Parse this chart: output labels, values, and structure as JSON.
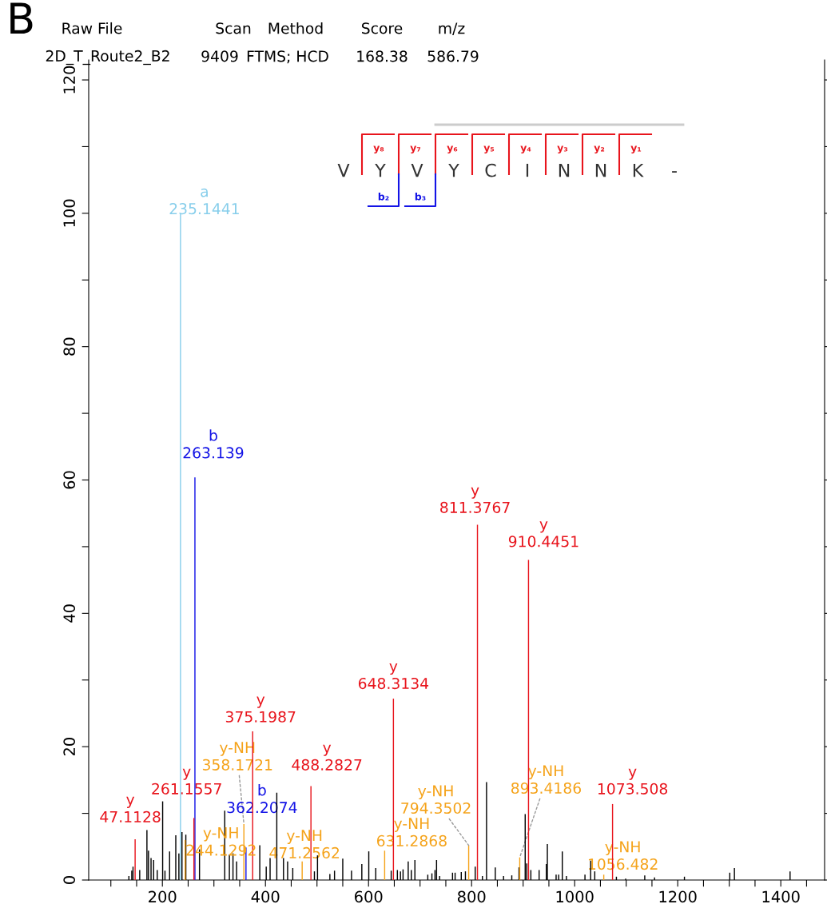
{
  "chart_data": {
    "type": "bar",
    "title": "B",
    "xlim": [
      57,
      1485
    ],
    "xticks": [
      {
        "value": 100,
        "label": null
      },
      {
        "value": 150,
        "label": null
      },
      200,
      {
        "value": 250,
        "label": null
      },
      {
        "value": 300,
        "label": null
      },
      {
        "value": 350,
        "label": null
      },
      400,
      {
        "value": 450,
        "label": null
      },
      {
        "value": 500,
        "label": null
      },
      {
        "value": 550,
        "label": null
      },
      600,
      {
        "value": 650,
        "label": null
      },
      {
        "value": 700,
        "label": null
      },
      {
        "value": 750,
        "label": null
      },
      800,
      {
        "value": 850,
        "label": null
      },
      {
        "value": 900,
        "label": null
      },
      {
        "value": 950,
        "label": null
      },
      1000,
      {
        "value": 1050,
        "label": null
      },
      {
        "value": 1100,
        "label": null
      },
      {
        "value": 1150,
        "label": null
      },
      1200,
      {
        "value": 1250,
        "label": null
      },
      {
        "value": 1300,
        "label": null
      },
      {
        "value": 1350,
        "label": null
      },
      1400,
      {
        "value": 1450,
        "label": null
      }
    ],
    "ylim": [
      0,
      123
    ],
    "yticks": [
      0,
      {
        "value": 10,
        "label": null
      },
      20,
      {
        "value": 30,
        "label": null
      },
      40,
      {
        "value": 50,
        "label": null
      },
      60,
      {
        "value": 70,
        "label": null
      },
      80,
      {
        "value": 90,
        "label": null
      },
      100,
      {
        "value": 110,
        "label": null
      },
      120
    ],
    "series": [
      {
        "color": "#000000",
        "x": [
          135,
          140.6,
          143,
          156,
          170,
          173,
          178,
          183,
          190,
          200.5,
          205,
          214,
          226,
          232,
          238,
          245.5,
          272,
          321,
          330,
          337,
          344,
          389,
          401.5,
          409,
          422,
          435,
          443,
          453,
          495,
          501,
          525,
          534,
          550,
          567,
          587,
          600.5,
          614,
          644,
          656,
          662,
          667,
          677,
          683,
          690,
          715,
          723,
          729,
          732,
          738,
          763,
          768,
          780,
          788,
          807,
          821,
          829,
          846,
          862,
          878,
          892,
          904,
          907,
          915,
          931,
          945,
          947,
          964,
          969,
          976,
          984,
          1020,
          1031,
          1039,
          1081,
          1099,
          1136,
          1155,
          1213,
          1301,
          1310,
          1418
        ],
        "values": [
          0.6,
          1.4,
          2.0,
          1.5,
          7.5,
          4.4,
          3.3,
          3.0,
          1.5,
          11.8,
          1.4,
          4.3,
          6.7,
          4.0,
          7.2,
          6.8,
          4.6,
          10.4,
          3.8,
          4.0,
          2.8,
          5.2,
          2.0,
          3.3,
          13.1,
          3.3,
          2.8,
          1.8,
          1.3,
          3.7,
          0.9,
          1.4,
          3.2,
          1.4,
          2.4,
          4.3,
          1.8,
          1.4,
          1.5,
          1.3,
          1.6,
          2.8,
          1.5,
          3.0,
          0.8,
          1.0,
          1.5,
          3.0,
          0.6,
          1.1,
          1.1,
          1.2,
          1.3,
          2.0,
          0.6,
          14.7,
          1.9,
          0.6,
          0.7,
          1.9,
          9.9,
          2.5,
          1.5,
          1.5,
          2.4,
          5.4,
          0.8,
          0.8,
          4.3,
          0.6,
          0.8,
          2.9,
          1.3,
          0.5,
          0.2,
          0.7,
          0.4,
          0.5,
          1.1,
          1.8,
          1.3
        ]
      },
      {
        "color": "#87ceeb",
        "x": [
          235.1441
        ],
        "values": [
          100
        ]
      },
      {
        "color": "#f5a31a",
        "x": [
          244.1292,
          358.1721,
          471.2562,
          631.2868,
          794.3502,
          893.4186,
          1056.482
        ],
        "values": [
          6.0,
          8.4,
          2.8,
          4.4,
          5.2,
          3.4,
          0.8
        ]
      },
      {
        "color": "#1414e6",
        "x": [
          263.139,
          362.2074
        ],
        "values": [
          60.4,
          4.9
        ]
      },
      {
        "color": "#e8141c",
        "x": [
          147.1128,
          261.1557,
          375.1987,
          488.2827,
          648.3134,
          811.3767,
          910.4451,
          1073.508
        ],
        "values": [
          6.1,
          9.3,
          22.3,
          14.1,
          27.2,
          53.3,
          48.0,
          11.4
        ]
      }
    ],
    "annotations": [
      "Raw File",
      "Scan",
      "Method",
      "Score",
      "m/z",
      "2D_T_Route2_B2",
      "9409",
      "FTMS; HCD",
      "168.38",
      "586.79",
      "V Y V Y C I N N K -",
      "y₈ y₇ y₆ y₅ y₄ y₃ y₂ y₁",
      "b₂ b₃",
      {
        "text": "y\n47.1128",
        "x": 147.1128,
        "y": 6.1
      },
      {
        "text": "a\n235.1441",
        "x": 235.1441,
        "y": 100
      },
      {
        "text": "y-NH\n244.1292",
        "x": 244.1292,
        "y": 6.0
      },
      {
        "text": "y\n261.1557",
        "x": 261.1557,
        "y": 9.3
      },
      {
        "text": "b\n263.139",
        "x": 263.139,
        "y": 60.4
      },
      {
        "text": "y-NH\n358.1721",
        "x": 358.1721,
        "y": 8.4
      },
      {
        "text": "b\n362.2074",
        "x": 362.2074,
        "y": 4.9
      },
      {
        "text": "y\n375.1987",
        "x": 375.1987,
        "y": 22.3
      },
      {
        "text": "y-NH\n471.2562",
        "x": 471.2562,
        "y": 2.8
      },
      {
        "text": "y\n488.2827",
        "x": 488.2827,
        "y": 14.1
      },
      {
        "text": "y-NH\n631.2868",
        "x": 631.2868,
        "y": 4.4
      },
      {
        "text": "y\n648.3134",
        "x": 648.3134,
        "y": 27.2
      },
      {
        "text": "y-NH\n794.3502",
        "x": 794.3502,
        "y": 5.2
      },
      {
        "text": "y\n811.3767",
        "x": 811.3767,
        "y": 53.3
      },
      {
        "text": "y-NH\n893.4186",
        "x": 893.4186,
        "y": 3.4
      },
      {
        "text": "y\n910.4451",
        "x": 910.4451,
        "y": 48.0
      },
      {
        "text": "y-NH\n1056.482",
        "x": 1056.482,
        "y": 0.8
      },
      {
        "text": "y\n1073.508",
        "x": 1073.508,
        "y": 11.4
      }
    ]
  }
}
